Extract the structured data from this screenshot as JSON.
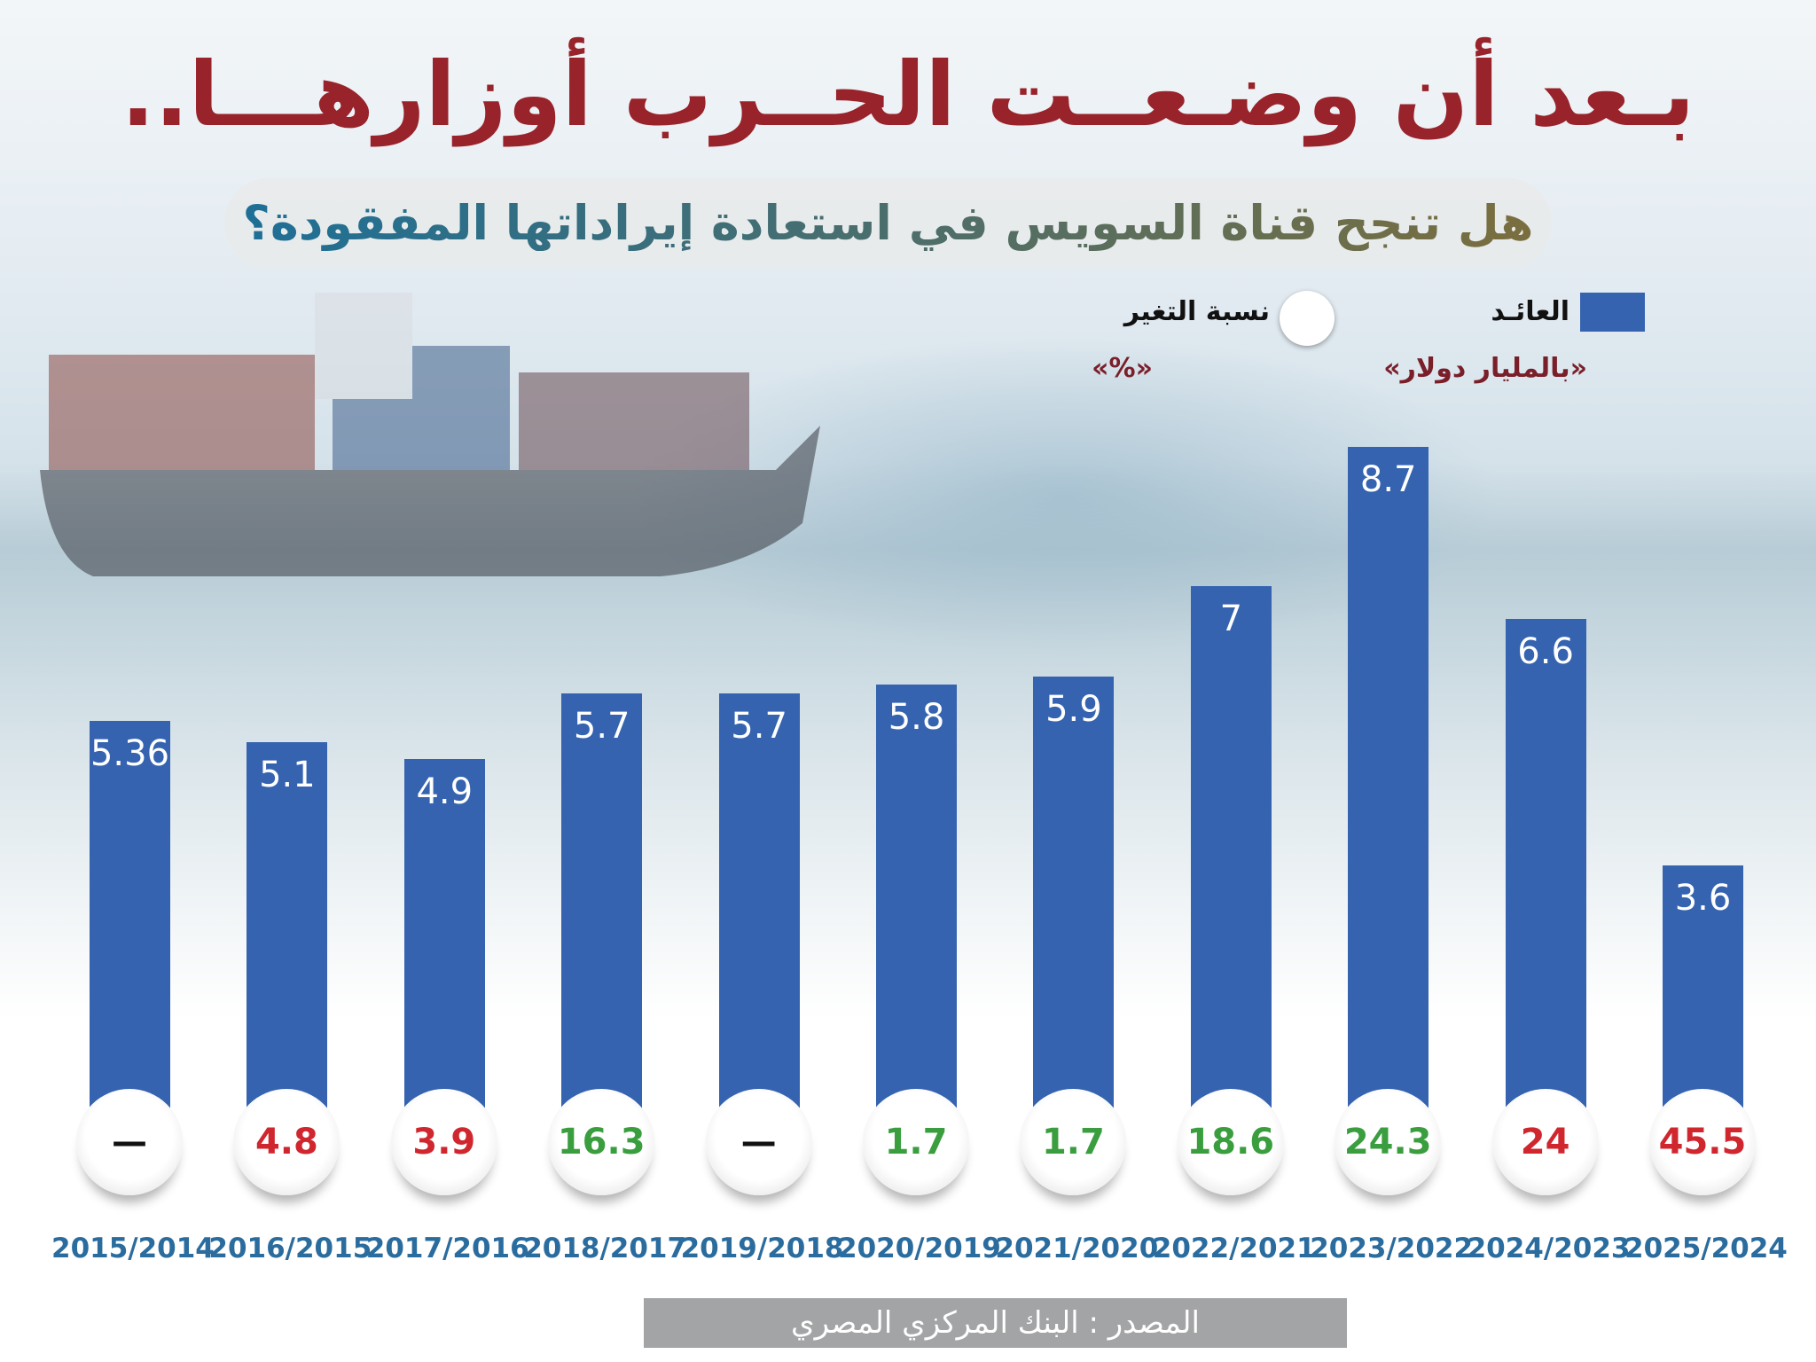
{
  "title": "بـعد أن وضـعــت الحــرب أوزارهـــا..",
  "subtitle": "هل تنجح قناة السويس في استعادة إيراداتها المفقودة؟",
  "legend": {
    "revenue_label": "العائـد",
    "revenue_unit": "«بالمليار دولار»",
    "change_label": "نسبة التغير",
    "change_unit": "«%»"
  },
  "colors": {
    "bar": "#3563b0",
    "up": "#3a9e3f",
    "down": "#d0262e",
    "neutral": "#111111",
    "title": "#98232b",
    "year": "#2a6c9e"
  },
  "source": "المصدر : البنك المركزي المصري",
  "chart_data": {
    "type": "bar",
    "title": "بـعد أن وضـعــت الحــرب أوزارهـــا..",
    "ylabel": "العائد (بالمليار دولار)",
    "ylim": [
      0,
      9.6
    ],
    "categories": [
      "2015/2014",
      "2016/2015",
      "2017/2016",
      "2018/2017",
      "2019/2018",
      "2020/2019",
      "2021/2020",
      "2022/2021",
      "2023/2022",
      "2024/2023",
      "2025/2024"
    ],
    "values": [
      5.36,
      5.1,
      4.9,
      5.7,
      5.7,
      5.8,
      5.9,
      7,
      8.7,
      6.6,
      3.6
    ],
    "value_labels": [
      "5.36",
      "5.1",
      "4.9",
      "5.7",
      "5.7",
      "5.8",
      "5.9",
      "7",
      "8.7",
      "6.6",
      "3.6"
    ],
    "change_pct": [
      "—",
      "4.8",
      "3.9",
      "16.3",
      "—",
      "1.7",
      "1.7",
      "18.6",
      "24.3",
      "24",
      "45.5"
    ],
    "change_direction": [
      "none",
      "down",
      "down",
      "up",
      "none",
      "up",
      "up",
      "up",
      "up",
      "down",
      "down"
    ]
  }
}
